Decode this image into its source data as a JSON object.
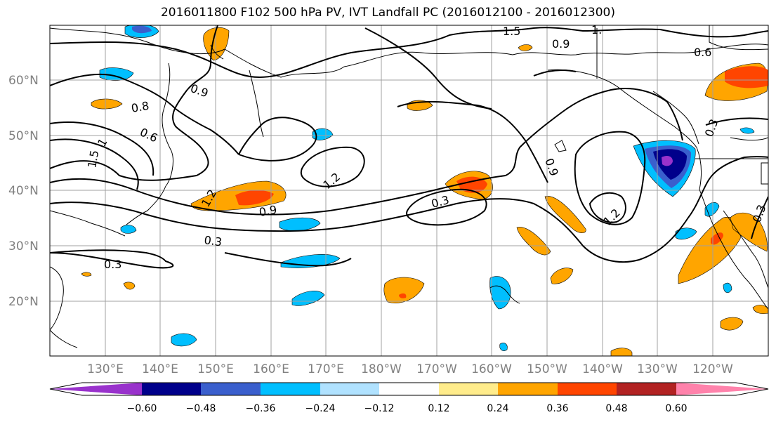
{
  "title": "2016011800 F102 500 hPa PV, IVT Landfall PC (2016012100 - 2016012300)",
  "latitude_labels": [
    "60°N",
    "50°N",
    "40°N",
    "30°N",
    "20°N"
  ],
  "longitude_labels": [
    "130°E",
    "140°E",
    "150°E",
    "160°E",
    "170°E",
    "180°W",
    "170°W",
    "160°W",
    "150°W",
    "140°W",
    "130°W",
    "120°W"
  ],
  "contour_labels": [
    "1.5",
    "0.9",
    "0.6",
    "0.9",
    "0.8",
    "0.6",
    "1.5",
    "1",
    "1.2",
    "0.9",
    "1.2",
    "0.3",
    "0.3",
    "0.3",
    "0.9",
    "1.2",
    "0.3",
    "0.3",
    "1."
  ],
  "colorbar": {
    "tick_labels": [
      "−0.60",
      "−0.48",
      "−0.36",
      "−0.24",
      "−0.12",
      "0.12",
      "0.24",
      "0.36",
      "0.48",
      "0.60"
    ],
    "colors": [
      "#9932cc",
      "#00008b",
      "#3a5fcd",
      "#00bfff",
      "#b0e2ff",
      "#ffffff",
      "#ffec8b",
      "#ffa500",
      "#ff4500",
      "#b22222",
      "#ff82ab"
    ]
  }
}
